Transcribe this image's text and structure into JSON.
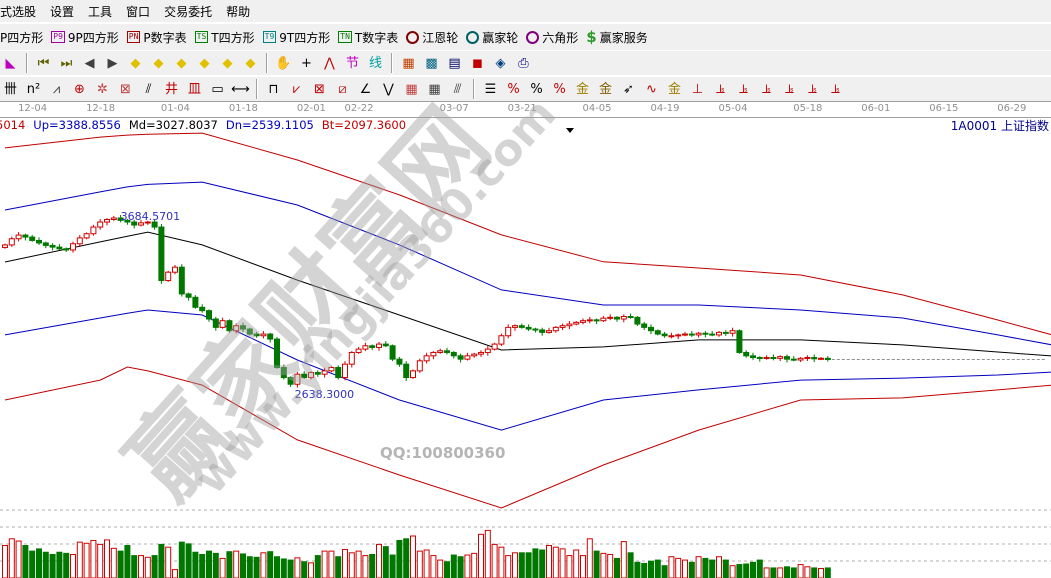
{
  "menu": [
    "式选股",
    "设置",
    "工具",
    "窗口",
    "交易委托",
    "帮助"
  ],
  "toolbar2": [
    {
      "badge": "",
      "label": "P四方形",
      "color": "#a000a0"
    },
    {
      "badge": "P9",
      "label": "9P四方形",
      "color": "#a000a0"
    },
    {
      "badge": "PN",
      "label": "P数字表",
      "color": "#a00000"
    },
    {
      "badge": "TS",
      "label": "T四方形",
      "color": "#008000"
    },
    {
      "badge": "T9",
      "label": "9T四方形",
      "color": "#008080"
    },
    {
      "badge": "TN",
      "label": "T数字表",
      "color": "#008000"
    },
    {
      "badge": "",
      "label": "江恩轮",
      "color": "#800000",
      "icon": "gann-wheel-icon"
    },
    {
      "badge": "",
      "label": "赢家轮",
      "color": "#006060",
      "icon": "big-wheel-icon"
    },
    {
      "badge": "",
      "label": "六角形",
      "color": "#800080",
      "icon": "hexagon-icon"
    },
    {
      "badge": "",
      "label": "赢家服务",
      "color": "#2a9a2a",
      "icon": "dollar-icon",
      "glyph": "$"
    }
  ],
  "toolbar3": [
    {
      "n": "chart-type-icon",
      "g": "◣",
      "c": "#c000c0"
    },
    {
      "sep": true
    },
    {
      "n": "first-icon",
      "g": "⏮",
      "c": "#606000"
    },
    {
      "n": "last-icon",
      "g": "⏭",
      "c": "#606000"
    },
    {
      "n": "prev-icon",
      "g": "◀",
      "c": "#404040"
    },
    {
      "n": "next-icon",
      "g": "▶",
      "c": "#404040"
    },
    {
      "n": "shift-left-icon",
      "g": "◆",
      "c": "#e0c000"
    },
    {
      "n": "shift-right-icon",
      "g": "◆",
      "c": "#e0c000"
    },
    {
      "n": "expand-icon",
      "g": "◆",
      "c": "#e0c000"
    },
    {
      "n": "shrink-icon",
      "g": "◆",
      "c": "#e0c000"
    },
    {
      "n": "zoom-in-icon",
      "g": "◆",
      "c": "#e0c000"
    },
    {
      "n": "zoom-out-icon",
      "g": "◆",
      "c": "#e0c000"
    },
    {
      "sep": true
    },
    {
      "n": "hand-icon",
      "g": "✋",
      "c": "#000"
    },
    {
      "n": "crosshair-icon",
      "g": "+",
      "c": "#000"
    },
    {
      "n": "line-tool-icon",
      "g": "⋀",
      "c": "#c00000"
    },
    {
      "n": "node-icon",
      "g": "节",
      "c": "#c000c0"
    },
    {
      "n": "segment-icon",
      "g": "线",
      "c": "#00a0a0"
    },
    {
      "sep": true
    },
    {
      "n": "calendar-icon",
      "g": "▦",
      "c": "#c04000"
    },
    {
      "n": "calculator-icon",
      "g": "▩",
      "c": "#006080"
    },
    {
      "n": "notes-icon",
      "g": "▤",
      "c": "#000060"
    },
    {
      "n": "save-icon",
      "g": "◼",
      "c": "#c00000"
    },
    {
      "n": "network-icon",
      "g": "◈",
      "c": "#004080"
    },
    {
      "n": "print-icon",
      "g": "⎙",
      "c": "#000080"
    }
  ],
  "toolbar4": [
    {
      "n": "grid-lines-icon",
      "g": "卌",
      "c": "#000"
    },
    {
      "n": "square-icon",
      "g": "n²",
      "c": "#000"
    },
    {
      "n": "fan-icon",
      "g": "⩘",
      "c": "#404040"
    },
    {
      "n": "circle-cross-icon",
      "g": "⊕",
      "c": "#c00000"
    },
    {
      "n": "spiral-icon",
      "g": "✲",
      "c": "#c04040"
    },
    {
      "n": "box-icon",
      "g": "⊠",
      "c": "#c04040"
    },
    {
      "n": "parallel-icon",
      "g": "⫽",
      "c": "#000"
    },
    {
      "n": "gann-grid-icon",
      "g": "井",
      "c": "#c00000"
    },
    {
      "n": "gann-box-icon",
      "g": "皿",
      "c": "#c00000"
    },
    {
      "n": "ruler-icon",
      "g": "▭",
      "c": "#000"
    },
    {
      "n": "width-icon",
      "g": "⟷",
      "c": "#000"
    },
    {
      "sep": true
    },
    {
      "n": "rect-icon",
      "g": "⊓",
      "c": "#000"
    },
    {
      "n": "gann-fan-icon",
      "g": "⩗",
      "c": "#c00000"
    },
    {
      "n": "fan-box-icon",
      "g": "⊠",
      "c": "#c00000"
    },
    {
      "n": "fan-box2-icon",
      "g": "⧄",
      "c": "#c00000"
    },
    {
      "n": "angle-icon",
      "g": "∠",
      "c": "#000"
    },
    {
      "n": "zigzag-icon",
      "g": "⋁",
      "c": "#000"
    },
    {
      "n": "grid-icon",
      "g": "▦",
      "c": "#c04040"
    },
    {
      "n": "grid2-icon",
      "g": "▦",
      "c": "#404040"
    },
    {
      "n": "diag-icon",
      "g": "⫻",
      "c": "#404040"
    },
    {
      "sep": true
    },
    {
      "n": "levels-icon",
      "g": "☰",
      "c": "#000"
    },
    {
      "n": "percent-slash-icon",
      "g": "%",
      "c": "#c00000"
    },
    {
      "n": "percent-icon",
      "g": "%",
      "c": "#000"
    },
    {
      "n": "percent-lines-icon",
      "g": "%",
      "c": "#c00000"
    },
    {
      "n": "gold-circle-icon",
      "g": "金",
      "c": "#a08000"
    },
    {
      "n": "gold-lines-icon",
      "g": "金",
      "c": "#806000"
    },
    {
      "n": "arrow-icon",
      "g": "➶",
      "c": "#000"
    },
    {
      "n": "wave-icon",
      "g": "∿",
      "c": "#c00000"
    },
    {
      "n": "gold-icon",
      "g": "金",
      "c": "#a08000"
    },
    {
      "n": "tool1-icon",
      "g": "⊥",
      "c": "#c00000"
    },
    {
      "n": "tool2-icon",
      "g": "⫡",
      "c": "#c00000"
    },
    {
      "n": "tool3-icon",
      "g": "⫡",
      "c": "#c00000"
    },
    {
      "n": "tool4-icon",
      "g": "⫡",
      "c": "#c00000"
    },
    {
      "n": "tool5-icon",
      "g": "⫡",
      "c": "#c00000"
    },
    {
      "n": "tool6-icon",
      "g": "⫡",
      "c": "#c00000"
    },
    {
      "n": "tool7-icon",
      "g": "⫡",
      "c": "#c00000"
    }
  ],
  "info": {
    "prefix": "5014",
    "up": "Up=3388.8556",
    "md": "Md=3027.8037",
    "dn": "Dn=2539.1105",
    "bt": "Bt=2097.3600"
  },
  "security": "1A0001  上证指数",
  "watermark": {
    "cn": "赢家财富网",
    "url": "www.yingjia360.com",
    "qq": "QQ:100800360"
  },
  "chart_data": {
    "type": "candlestick",
    "colors": {
      "up": "#d00000",
      "down": "#007800",
      "band_outer": "#c00000",
      "band_inner": "#0000c0",
      "mid": "#000000"
    },
    "date_ticks": [
      {
        "i": 2,
        "d": "12-04"
      },
      {
        "i": 12,
        "d": "12-18"
      },
      {
        "i": 23,
        "d": "01-04"
      },
      {
        "i": 33,
        "d": "01-18"
      },
      {
        "i": 43,
        "d": "02-01"
      },
      {
        "i": 50,
        "d": "02-22"
      },
      {
        "i": 64,
        "d": "03-07"
      },
      {
        "i": 74,
        "d": "03-21"
      },
      {
        "i": 85,
        "d": "04-05"
      },
      {
        "i": 95,
        "d": "04-19"
      },
      {
        "i": 105,
        "d": "05-04"
      },
      {
        "i": 116,
        "d": "05-18"
      },
      {
        "i": 126,
        "d": "06-01"
      },
      {
        "i": 136,
        "d": "06-15"
      },
      {
        "i": 146,
        "d": "06-29"
      }
    ],
    "close": [
      3493,
      3530,
      3552,
      3540,
      3520,
      3505,
      3490,
      3480,
      3470,
      3463,
      3500,
      3535,
      3560,
      3600,
      3630,
      3645,
      3654,
      3640,
      3630,
      3612,
      3625,
      3630,
      3600,
      3280,
      3330,
      3360,
      3200,
      3180,
      3120,
      3100,
      3050,
      3000,
      3040,
      2980,
      3010,
      2990,
      2960,
      2950,
      2960,
      2930,
      2760,
      2700,
      2660,
      2720,
      2700,
      2730,
      2720,
      2740,
      2760,
      2700,
      2780,
      2850,
      2870,
      2890,
      2880,
      2900,
      2890,
      2810,
      2780,
      2700,
      2740,
      2800,
      2830,
      2850,
      2860,
      2850,
      2830,
      2810,
      2830,
      2840,
      2850,
      2870,
      2900,
      2950,
      3000,
      3010,
      3000,
      2990,
      2985,
      2970,
      2980,
      3000,
      3010,
      3020,
      3030,
      3040,
      3045,
      3040,
      3055,
      3060,
      3050,
      3065,
      3060,
      3020,
      3000,
      2980,
      2960,
      2950,
      2950,
      2955,
      2960,
      2955,
      2965,
      2960,
      2955,
      2970,
      2965,
      2980,
      2850,
      2830,
      2820,
      2815,
      2820,
      2815,
      2825,
      2810,
      2805,
      2815,
      2820,
      2812,
      2815,
      2808
    ],
    "volume": [
      58,
      70,
      66,
      58,
      48,
      52,
      46,
      42,
      46,
      44,
      42,
      64,
      62,
      67,
      60,
      68,
      53,
      48,
      58,
      40,
      40,
      37,
      40,
      60,
      55,
      15,
      64,
      61,
      46,
      42,
      48,
      44,
      35,
      47,
      48,
      43,
      38,
      37,
      45,
      47,
      38,
      34,
      32,
      36,
      29,
      27,
      40,
      48,
      48,
      38,
      51,
      45,
      48,
      40,
      42,
      60,
      56,
      41,
      67,
      70,
      75,
      48,
      50,
      40,
      32,
      29,
      41,
      38,
      41,
      44,
      78,
      85,
      60,
      55,
      40,
      45,
      45,
      45,
      52,
      50,
      58,
      55,
      52,
      40,
      50,
      40,
      70,
      48,
      44,
      42,
      35,
      65,
      45,
      28,
      26,
      30,
      32,
      22,
      38,
      35,
      32,
      28,
      38,
      35,
      32,
      38,
      32,
      22,
      24,
      25,
      28,
      32,
      18,
      18,
      18,
      20,
      18,
      24,
      20,
      18,
      17,
      18
    ],
    "annotations": [
      {
        "i": 17,
        "price": 3684.5701,
        "text": "3684.5701"
      },
      {
        "i": 42,
        "price": 2638.3,
        "text": "2638.3000"
      }
    ],
    "bands_index": [
      0,
      14,
      18,
      21,
      29,
      43,
      58,
      73,
      88,
      102,
      117,
      132,
      146,
      154
    ],
    "up_band": [
      4073,
      4138,
      4150,
      4155,
      4162,
      4001,
      3792,
      3553,
      3392,
      3355,
      3313,
      3194,
      3044,
      2955
    ],
    "upper_inner": [
      3702,
      3810,
      3840,
      3855,
      3869,
      3732,
      3493,
      3224,
      3134,
      3134,
      3104,
      3056,
      2955,
      2895
    ],
    "mid": [
      3391,
      3511,
      3545,
      3570,
      3493,
      3283,
      3074,
      2865,
      2883,
      2925,
      2925,
      2895,
      2853,
      2829
    ],
    "lower_inner": [
      2955,
      3056,
      3085,
      3104,
      3074,
      2805,
      2566,
      2386,
      2566,
      2626,
      2685,
      2697,
      2715,
      2733
    ],
    "low_band": [
      2566,
      2685,
      2763,
      2740,
      2655,
      2327,
      2117,
      1920,
      2177,
      2386,
      2566,
      2578,
      2626,
      2655
    ]
  }
}
